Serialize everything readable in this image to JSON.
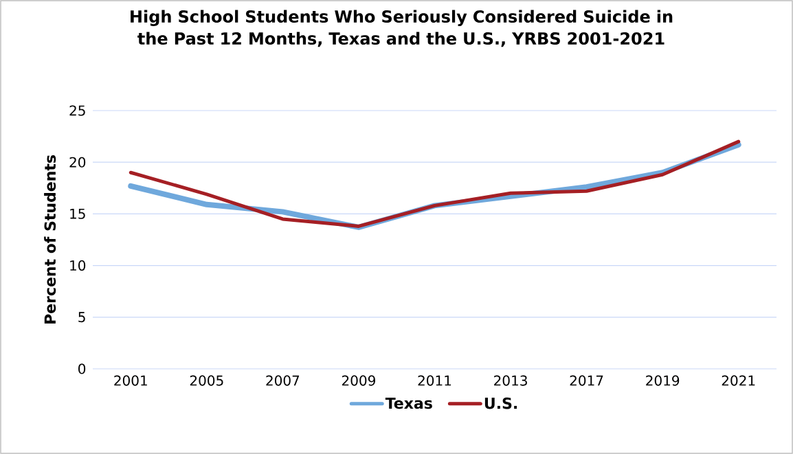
{
  "chart_data": {
    "type": "line",
    "title": "High School Students Who Seriously Considered Suicide in the Past 12 Months, Texas and the U.S., YRBS 2001-2021",
    "ylabel": "Percent of Students",
    "categories": [
      "2001",
      "2005",
      "2007",
      "2009",
      "2011",
      "2013",
      "2017",
      "2019",
      "2021"
    ],
    "series": [
      {
        "name": "Texas",
        "color": "#6fa8dc",
        "values": [
          17.7,
          15.9,
          15.2,
          13.7,
          15.8,
          16.7,
          17.6,
          19.0,
          21.7
        ]
      },
      {
        "name": "U.S.",
        "color": "#a51f24",
        "values": [
          19.0,
          16.9,
          14.5,
          13.8,
          15.8,
          17.0,
          17.2,
          18.8,
          22.0
        ]
      }
    ],
    "ylim": [
      0,
      25
    ],
    "yticks": [
      0,
      5,
      10,
      15,
      20,
      25
    ],
    "grid": "y",
    "legend": "bottom",
    "marker": "none",
    "line_style": "solid"
  }
}
